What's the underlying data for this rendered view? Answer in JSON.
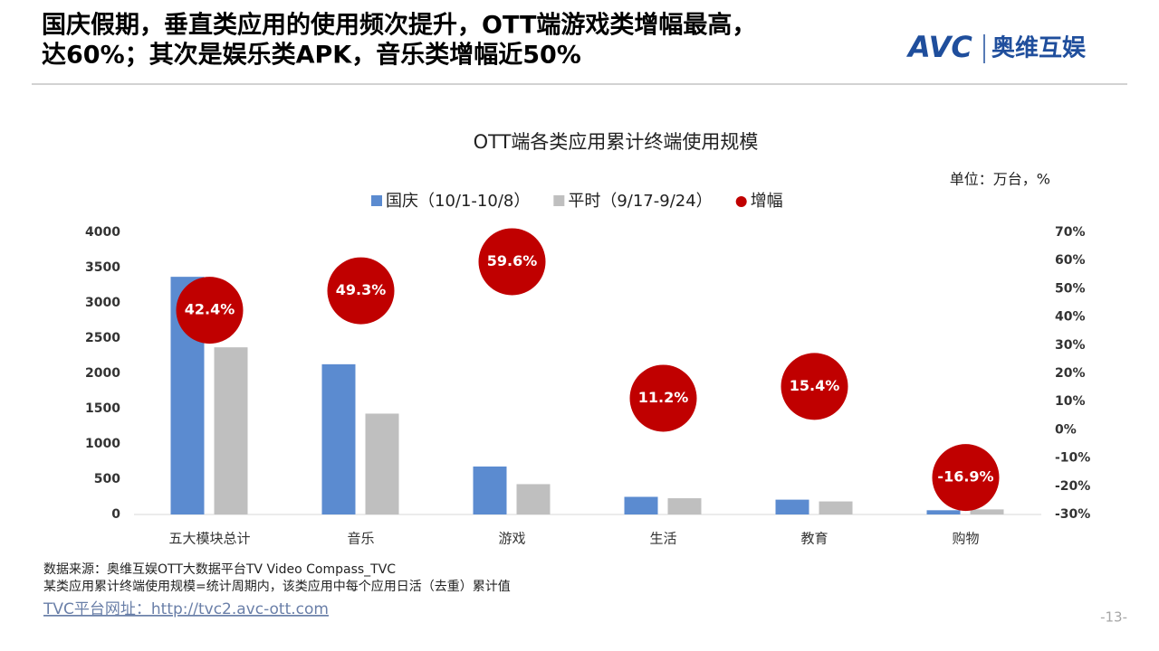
{
  "header": {
    "title": [
      "国庆假期，垂直类应用的使用频次提升，OTT端游戏类增幅最高，",
      "达60%；其次是娱乐类APK，音乐类增幅近50%"
    ],
    "logo": "AVC",
    "logo_cn": "奥维互娱"
  },
  "chart_data": {
    "type": "bar",
    "title": "OTT端各类应用累计终端使用规模",
    "unit_note": "单位：万台，%",
    "categories": [
      "五大模块总计",
      "音乐",
      "游戏",
      "生活",
      "教育",
      "购物"
    ],
    "series": [
      {
        "name": "国庆（10/1-10/8）",
        "color": "#5b8bd0",
        "values": [
          3370,
          2130,
          680,
          250,
          210,
          60
        ]
      },
      {
        "name": "平时（9/17-9/24）",
        "color": "#bfbfbf",
        "values": [
          2370,
          1430,
          430,
          230,
          185,
          72
        ]
      },
      {
        "name": "增幅",
        "color": "#c00000",
        "axis": "y2",
        "values": [
          42.4,
          49.3,
          59.6,
          11.2,
          15.4,
          -16.9
        ],
        "value_labels": [
          "42.4%",
          "49.3%",
          "59.6%",
          "11.2%",
          "15.4%",
          "-16.9%"
        ]
      }
    ],
    "ylim": [
      0,
      4000
    ],
    "yticks": [
      0,
      500,
      1000,
      1500,
      2000,
      2500,
      3000,
      3500,
      4000
    ],
    "y2lim": [
      -30,
      70
    ],
    "y2ticks": [
      {
        "value": -30,
        "label": "-30%"
      },
      {
        "value": -20,
        "label": "-20%"
      },
      {
        "value": -10,
        "label": "-10%"
      },
      {
        "value": 0,
        "label": "0%"
      },
      {
        "value": 10,
        "label": "10%"
      },
      {
        "value": 20,
        "label": "20%"
      },
      {
        "value": 30,
        "label": "30%"
      },
      {
        "value": 40,
        "label": "40%"
      },
      {
        "value": 50,
        "label": "50%"
      },
      {
        "value": 60,
        "label": "60%"
      },
      {
        "value": 70,
        "label": "70%"
      }
    ]
  },
  "footer": {
    "source": "数据来源：奥维互娱OTT大数据平台TV Video Compass_TVC",
    "note": "某类应用累计终端使用规模=统计周期内，该类应用中每个应用日活（去重）累计值",
    "link": "TVC平台网址：http://tvc2.avc-ott.com",
    "page": "-13-"
  }
}
